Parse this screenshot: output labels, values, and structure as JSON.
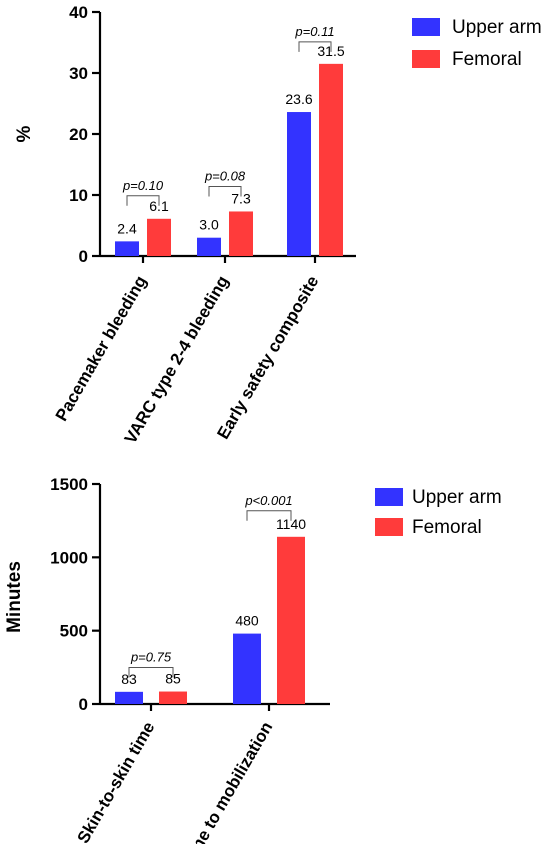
{
  "colors": {
    "upper_arm": "#3333ff",
    "femoral": "#ff3b3b"
  },
  "chart_data": [
    {
      "type": "bar",
      "ylabel": "%",
      "ylim": [
        0,
        40
      ],
      "yticks": [
        "0",
        "10",
        "20",
        "30",
        "40"
      ],
      "categories": [
        "Pacemaker bleeding",
        "VARC type 2-4 bleeding",
        "Early safety composite"
      ],
      "series": [
        {
          "name": "Upper arm",
          "values": [
            2.4,
            3.0,
            23.6
          ],
          "labels": [
            "2.4",
            "3.0",
            "23.6"
          ]
        },
        {
          "name": "Femoral",
          "values": [
            6.1,
            7.3,
            31.5
          ],
          "labels": [
            "6.1",
            "7.3",
            "31.5"
          ]
        }
      ],
      "p_values": [
        "p=0.10",
        "p=0.08",
        "p=0.11"
      ],
      "legend_position": "top-right"
    },
    {
      "type": "bar",
      "ylabel": "Minutes",
      "ylim": [
        0,
        1500
      ],
      "yticks": [
        "0",
        "500",
        "1000",
        "1500"
      ],
      "categories": [
        "Skin-to-skin time",
        "Time to mobilization"
      ],
      "series": [
        {
          "name": "Upper arm",
          "values": [
            83,
            480
          ],
          "labels": [
            "83",
            "480"
          ]
        },
        {
          "name": "Femoral",
          "values": [
            85,
            1140
          ],
          "labels": [
            "85",
            "1140"
          ]
        }
      ],
      "p_values": [
        "p=0.75",
        "p<0.001"
      ],
      "legend_position": "top-right"
    }
  ]
}
